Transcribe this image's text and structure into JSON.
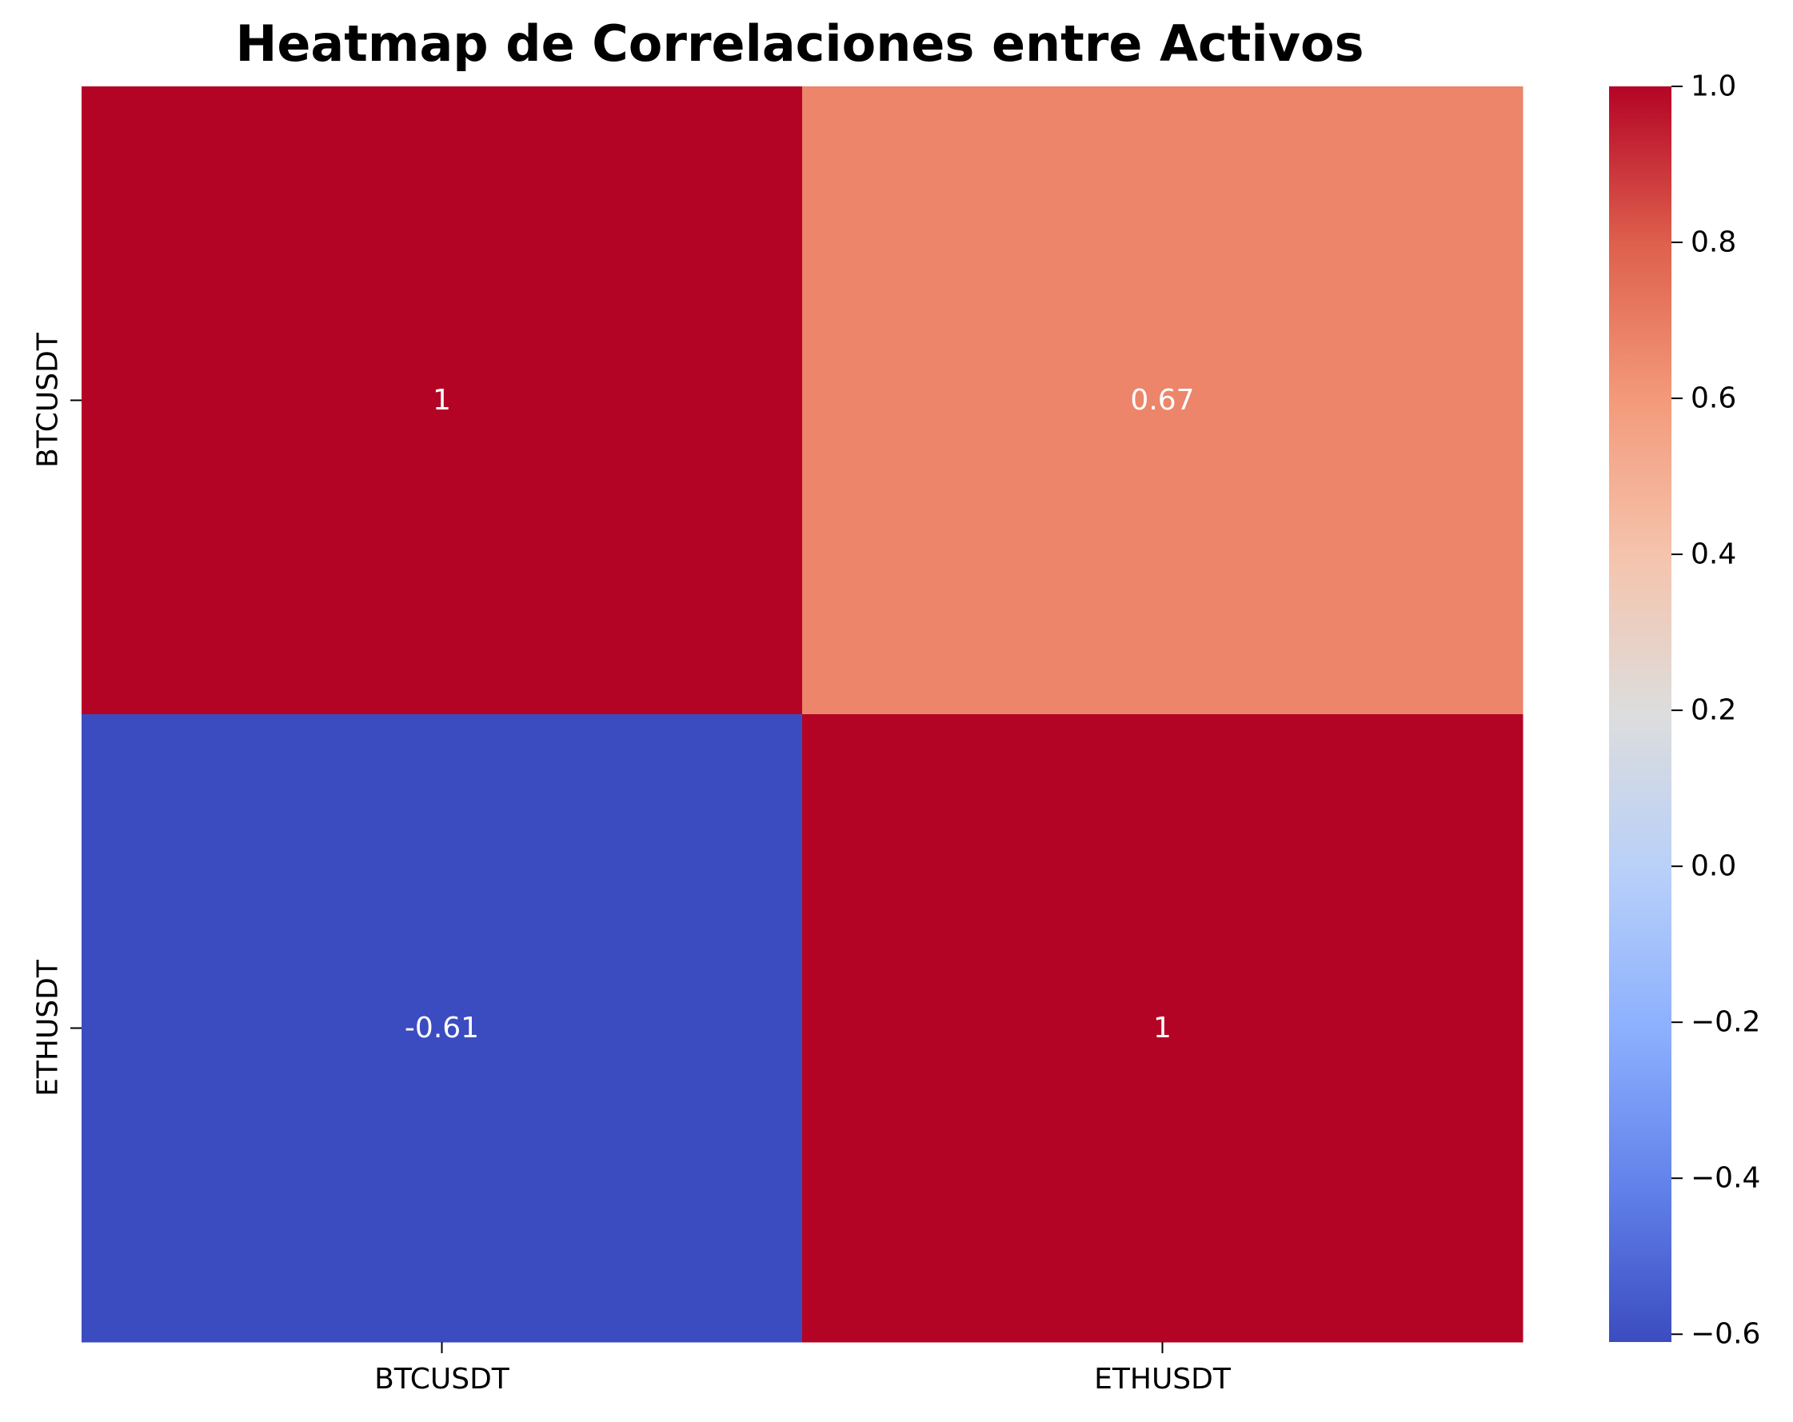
{
  "chart_data": {
    "type": "heatmap",
    "title": "Heatmap de Correlaciones entre Activos",
    "xlabel": "",
    "ylabel": "",
    "x_categories": [
      "BTCUSDT",
      "ETHUSDT"
    ],
    "y_categories": [
      "BTCUSDT",
      "ETHUSDT"
    ],
    "values": [
      [
        1.0,
        0.67
      ],
      [
        -0.61,
        1.0
      ]
    ],
    "annotations": [
      [
        "1",
        "0.67"
      ],
      [
        "-0.61",
        "1"
      ]
    ],
    "colorscale": "coolwarm",
    "colorbar": {
      "min": -0.61,
      "max": 1.0,
      "ticks": [
        -0.6,
        -0.4,
        -0.2,
        0.0,
        0.2,
        0.4,
        0.6,
        0.8,
        1.0
      ],
      "tick_labels": [
        "−0.6",
        "−0.4",
        "−0.2",
        "0.0",
        "0.2",
        "0.4",
        "0.6",
        "0.8",
        "1.0"
      ]
    },
    "grid": false,
    "legend": "colorbar-right"
  }
}
